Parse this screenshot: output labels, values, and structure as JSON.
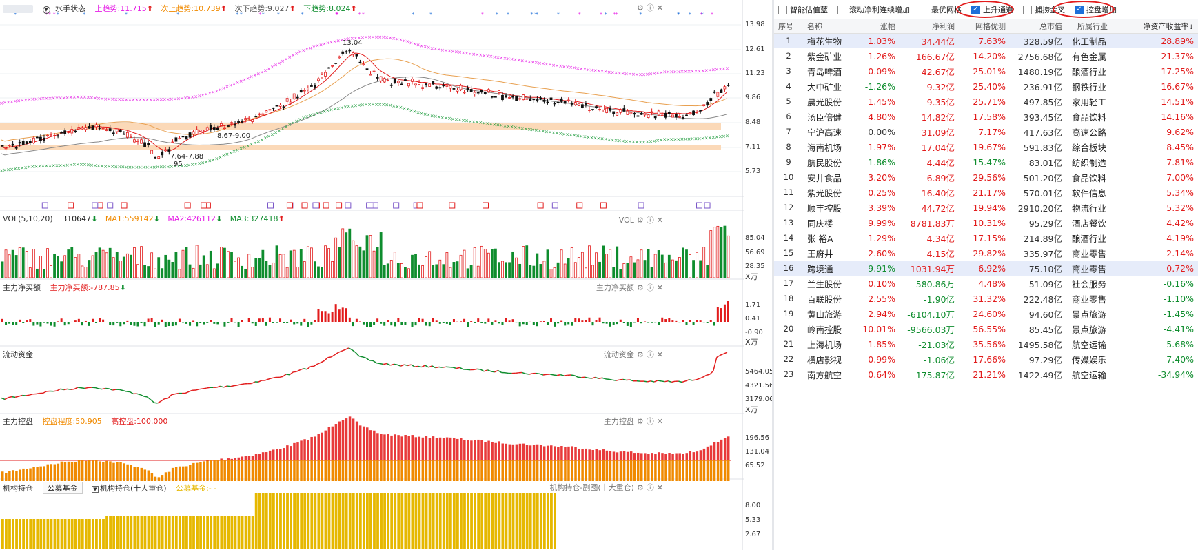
{
  "chart_header": {
    "stock_name": "",
    "indicator": "水手状态",
    "up_trend": "上趋势:11.715",
    "next_up_trend": "次上趋势:10.739",
    "next_down_trend": "次下趋势:9.027",
    "down_trend": "下趋势:8.024"
  },
  "price_axis": [
    "13.98",
    "12.61",
    "11.23",
    "9.86",
    "8.48",
    "7.11",
    "5.73"
  ],
  "annotations": {
    "high": "13.04",
    "range1": "8.67-9.00",
    "range2": "7.64-7.88",
    "low": "95"
  },
  "vol_panel": {
    "label": "VOL(5,10,20)",
    "vol": "310647",
    "ma1": "MA1:559142",
    "ma2": "MA2:426112",
    "ma3": "MA3:327418",
    "right_label": "VOL",
    "axis": [
      "85.04",
      "56.69",
      "28.35"
    ],
    "unit": "X万"
  },
  "netbuy_panel": {
    "label": "主力净买额",
    "value_label": "主力净买额:-787.85",
    "right_label": "主力净买额",
    "axis": [
      "1.71",
      "0.41",
      "-0.90"
    ],
    "unit": "X万"
  },
  "liquid_panel": {
    "label": "流动资金",
    "right_label": "流动资金",
    "axis": [
      "5464.05",
      "4321.56",
      "3179.06"
    ],
    "unit": "X万"
  },
  "control_panel": {
    "label": "主力控盘",
    "degree": "控盘程度:50.905",
    "high": "高控盘:100.000",
    "right_label": "主力控盘",
    "axis": [
      "196.56",
      "131.04",
      "65.52"
    ]
  },
  "inst_panel": {
    "label": "机构持仓",
    "tab": "公募基金",
    "dropdown": "机构持仓(十大重仓)",
    "value_label": "公募基金:-  -",
    "right_label": "机构持仓-副图(十大重仓)",
    "axis": [
      "8.00",
      "5.33",
      "2.67"
    ]
  },
  "toolbar": [
    {
      "label": "智能估值蓝",
      "checked": false
    },
    {
      "label": "滚动净利连续增加",
      "checked": false
    },
    {
      "label": "最优网格",
      "checked": false
    },
    {
      "label": "上升通道",
      "checked": true
    },
    {
      "label": "捕捞金叉",
      "checked": false
    },
    {
      "label": "控盘增加",
      "checked": true
    }
  ],
  "table": {
    "headers": [
      "序号",
      "名称",
      "涨幅",
      "净利润",
      "网格优测",
      "总市值",
      "所属行业",
      "净资产收益率"
    ],
    "sort_indicator": "↓",
    "rows": [
      [
        "1",
        "梅花生物",
        "1.03%",
        "34.44亿",
        "7.63%",
        "328.59亿",
        "化工制品",
        "28.89%"
      ],
      [
        "2",
        "紫金矿业",
        "1.26%",
        "166.67亿",
        "14.20%",
        "2756.68亿",
        "有色金属",
        "21.37%"
      ],
      [
        "3",
        "青岛啤酒",
        "0.09%",
        "42.67亿",
        "25.01%",
        "1480.19亿",
        "酿酒行业",
        "17.25%"
      ],
      [
        "4",
        "大中矿业",
        "-1.26%",
        "9.32亿",
        "25.40%",
        "236.91亿",
        "钢铁行业",
        "16.67%"
      ],
      [
        "5",
        "晨光股份",
        "1.45%",
        "9.35亿",
        "25.71%",
        "497.85亿",
        "家用轻工",
        "14.51%"
      ],
      [
        "6",
        "汤臣倍健",
        "4.80%",
        "14.82亿",
        "17.58%",
        "393.45亿",
        "食品饮料",
        "14.16%"
      ],
      [
        "7",
        "宁沪高速",
        "0.00%",
        "31.09亿",
        "7.17%",
        "417.63亿",
        "高速公路",
        "9.62%"
      ],
      [
        "8",
        "海南机场",
        "1.97%",
        "17.04亿",
        "19.67%",
        "591.83亿",
        "综合板块",
        "8.45%"
      ],
      [
        "9",
        "航民股份",
        "-1.86%",
        "4.44亿",
        "-15.47%",
        "83.01亿",
        "纺织制造",
        "7.81%"
      ],
      [
        "10",
        "安井食品",
        "3.20%",
        "6.89亿",
        "29.56%",
        "501.20亿",
        "食品饮料",
        "7.00%"
      ],
      [
        "11",
        "紫光股份",
        "0.25%",
        "16.40亿",
        "21.17%",
        "570.01亿",
        "软件信息",
        "5.34%"
      ],
      [
        "12",
        "顺丰控股",
        "3.39%",
        "44.72亿",
        "19.94%",
        "2910.20亿",
        "物流行业",
        "5.32%"
      ],
      [
        "13",
        "同庆楼",
        "9.99%",
        "8781.83万",
        "10.31%",
        "95.29亿",
        "酒店餐饮",
        "4.42%"
      ],
      [
        "14",
        "张 裕A",
        "1.29%",
        "4.34亿",
        "17.15%",
        "214.89亿",
        "酿酒行业",
        "4.19%"
      ],
      [
        "15",
        "王府井",
        "2.60%",
        "4.15亿",
        "29.82%",
        "335.97亿",
        "商业零售",
        "2.14%"
      ],
      [
        "16",
        "跨境通",
        "-9.91%",
        "1031.94万",
        "6.92%",
        "75.10亿",
        "商业零售",
        "0.72%"
      ],
      [
        "17",
        "兰生股份",
        "0.10%",
        "-580.86万",
        "4.48%",
        "51.09亿",
        "社会服务",
        "-0.16%"
      ],
      [
        "18",
        "百联股份",
        "2.55%",
        "-1.90亿",
        "31.32%",
        "222.48亿",
        "商业零售",
        "-1.10%"
      ],
      [
        "19",
        "黄山旅游",
        "2.94%",
        "-6104.10万",
        "24.60%",
        "94.60亿",
        "景点旅游",
        "-1.45%"
      ],
      [
        "20",
        "岭南控股",
        "10.01%",
        "-9566.03万",
        "56.55%",
        "85.45亿",
        "景点旅游",
        "-4.41%"
      ],
      [
        "21",
        "上海机场",
        "1.85%",
        "-21.03亿",
        "35.56%",
        "1495.58亿",
        "航空运输",
        "-5.68%"
      ],
      [
        "22",
        "横店影视",
        "0.99%",
        "-1.06亿",
        "17.66%",
        "97.29亿",
        "传媒娱乐",
        "-7.40%"
      ],
      [
        "23",
        "南方航空",
        "0.64%",
        "-175.87亿",
        "21.21%",
        "1422.49亿",
        "航空运输",
        "-34.94%"
      ]
    ]
  },
  "colors": {
    "up": "#e21c1c",
    "down": "#0f8d2e",
    "magenta": "#e61ee6",
    "orange": "#f08a00",
    "gold": "#e6b800"
  }
}
